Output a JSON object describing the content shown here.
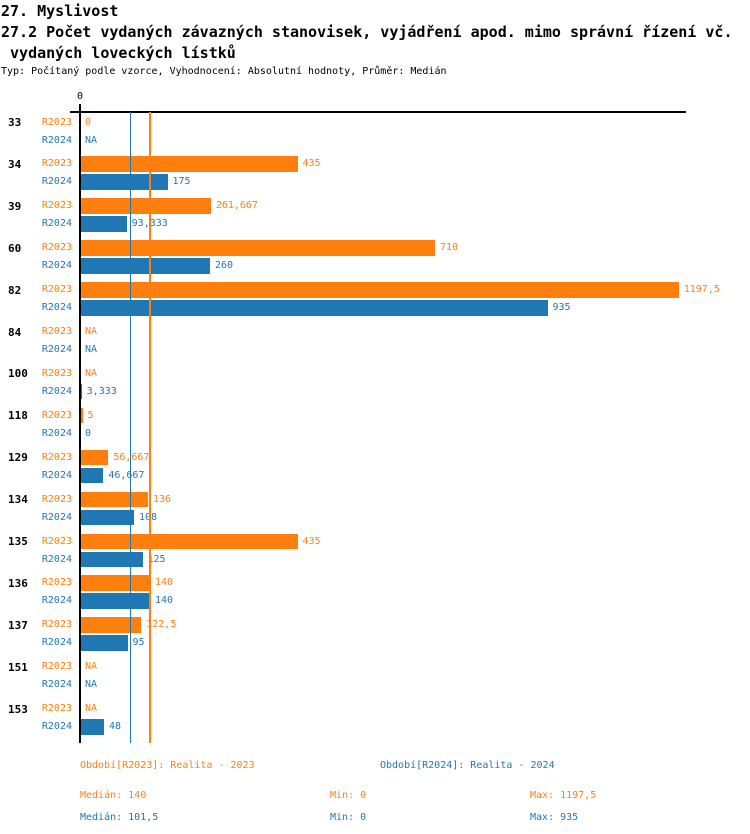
{
  "header": {
    "line1": "27. Myslivost",
    "line2": "27.2 Počet vydaných závazných stanovisek, vyjádření apod. mimo správní řízení vč.",
    "line3": " vydaných loveckých lístků",
    "meta": "Typ: Počítaný podle vzorce, Vyhodnocení: Absolutní hodnoty, Průměr: Medián"
  },
  "chart_data": {
    "type": "bar",
    "orientation": "horizontal",
    "title": "27.2 Počet vydaných závazných stanovisek, vyjádření apod. mimo správní řízení vč. vydaných loveckých lístků",
    "categories": [
      "33",
      "34",
      "39",
      "60",
      "82",
      "84",
      "100",
      "118",
      "129",
      "134",
      "135",
      "136",
      "137",
      "151",
      "153"
    ],
    "series": [
      {
        "name": "R2023",
        "legend": "Období[R2023]: Realita - 2023",
        "color": "#ff7f0e",
        "values": [
          0,
          435,
          261.667,
          710,
          1197.5,
          null,
          null,
          5,
          56.667,
          136,
          435,
          140,
          122.5,
          null,
          null
        ],
        "labels": [
          "0",
          "435",
          "261,667",
          "710",
          "1197,5",
          "NA",
          "NA",
          "5",
          "56,667",
          "136",
          "435",
          "140",
          "122,5",
          "NA",
          "NA"
        ],
        "median": 140,
        "min": 0,
        "max": 1197.5
      },
      {
        "name": "R2024",
        "legend": "Období[R2024]: Realita - 2024",
        "color": "#1f77b4",
        "values": [
          null,
          175,
          93.333,
          260,
          935,
          null,
          3.333,
          0,
          46.667,
          108,
          125,
          140,
          95,
          null,
          48
        ],
        "labels": [
          "NA",
          "175",
          "93,333",
          "260",
          "935",
          "NA",
          "3,333",
          "0",
          "46,667",
          "108",
          "125",
          "140",
          "95",
          "NA",
          "48"
        ],
        "median": 101.5,
        "min": 0,
        "max": 935
      }
    ],
    "x_axis": {
      "tick_labels": [
        "0"
      ],
      "min": 0,
      "range": [
        0,
        1212
      ]
    },
    "median_lines": [
      {
        "series": "R2023",
        "value": 140,
        "color": "#ff7f0e"
      },
      {
        "series": "R2024",
        "value": 101.5,
        "color": "#1f77b4"
      }
    ],
    "grid": false,
    "legend_position": "bottom"
  },
  "legend": {
    "series_2023": "Období[R2023]: Realita - 2023",
    "series_2024": "Období[R2024]: Realita - 2024",
    "stats_2023": {
      "median": "Medián: 140",
      "min": "Min: 0",
      "max": "Max: 1197,5"
    },
    "stats_2024": {
      "median": "Medián: 101,5",
      "min": "Min: 0",
      "max": "Max: 935"
    }
  },
  "colors": {
    "r2023": "#ff7f0e",
    "r2024": "#1f77b4",
    "axis": "#000000",
    "background": "#ffffff"
  }
}
